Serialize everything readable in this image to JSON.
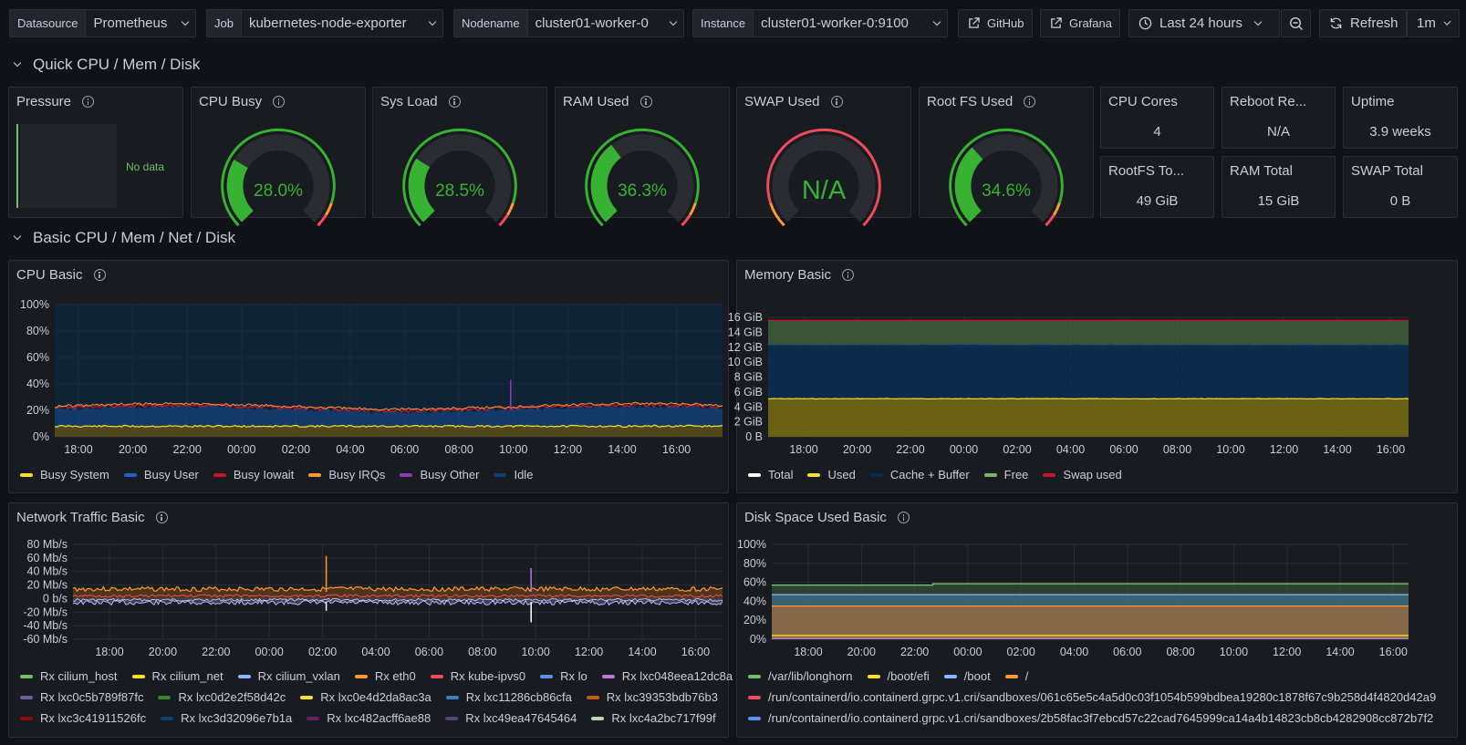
{
  "variables": [
    {
      "label": "Datasource",
      "value": "Prometheus"
    },
    {
      "label": "Job",
      "value": "kubernetes-node-exporter"
    },
    {
      "label": "Nodename",
      "value": "cluster01-worker-0"
    },
    {
      "label": "Instance",
      "value": "cluster01-worker-0:9100"
    }
  ],
  "links": {
    "github": "GitHub",
    "grafana": "Grafana"
  },
  "time_range": "Last 24 hours",
  "refresh_label": "Refresh",
  "refresh_interval": "1m",
  "rows": {
    "quick": "Quick CPU / Mem / Disk",
    "basic": "Basic CPU / Mem / Net / Disk"
  },
  "pressure": {
    "title": "Pressure",
    "no_data": "No data"
  },
  "gauges": [
    {
      "title": "CPU Busy",
      "value": "28.0%",
      "fraction": 0.28
    },
    {
      "title": "Sys Load",
      "value": "28.5%",
      "fraction": 0.285
    },
    {
      "title": "RAM Used",
      "value": "36.3%",
      "fraction": 0.363
    },
    {
      "title": "SWAP Used",
      "value": "N/A",
      "fraction": 0
    },
    {
      "title": "Root FS Used",
      "value": "34.6%",
      "fraction": 0.346
    }
  ],
  "stats": [
    {
      "title": "CPU Cores",
      "value": "4"
    },
    {
      "title": "Reboot Re...",
      "value": "N/A"
    },
    {
      "title": "Uptime",
      "value": "3.9 weeks"
    },
    {
      "title": "RootFS To...",
      "value": "49 GiB"
    },
    {
      "title": "RAM Total",
      "value": "15 GiB"
    },
    {
      "title": "SWAP Total",
      "value": "0 B"
    }
  ],
  "time_ticks": [
    "18:00",
    "20:00",
    "22:00",
    "00:00",
    "02:00",
    "04:00",
    "06:00",
    "08:00",
    "10:00",
    "12:00",
    "14:00",
    "16:00"
  ],
  "colors": {
    "green": "#37b233",
    "orange": "#ff9830",
    "red": "#f2495c",
    "bg_panel": "#181b1f"
  },
  "cpu": {
    "title": "CPU Basic",
    "yticks": [
      "100%",
      "80%",
      "60%",
      "40%",
      "20%",
      "0%"
    ],
    "legend": [
      {
        "name": "Busy System",
        "color": "#fade2a"
      },
      {
        "name": "Busy User",
        "color": "#1f60c4"
      },
      {
        "name": "Busy Iowait",
        "color": "#c4162a"
      },
      {
        "name": "Busy IRQs",
        "color": "#ff9830"
      },
      {
        "name": "Busy Other",
        "color": "#8f3bb8"
      },
      {
        "name": "Idle",
        "color": "#0a437c"
      }
    ]
  },
  "memory": {
    "title": "Memory Basic",
    "yticks": [
      "16 GiB",
      "14 GiB",
      "12 GiB",
      "10 GiB",
      "8 GiB",
      "6 GiB",
      "4 GiB",
      "2 GiB",
      "0 B"
    ],
    "legend": [
      {
        "name": "Total",
        "color": "#ffffff"
      },
      {
        "name": "Used",
        "color": "#fade2a"
      },
      {
        "name": "Cache + Buffer",
        "color": "#052b51"
      },
      {
        "name": "Free",
        "color": "#7eb26d"
      },
      {
        "name": "Swap used",
        "color": "#c4162a"
      }
    ]
  },
  "network": {
    "title": "Network Traffic Basic",
    "yticks": [
      "80 Mb/s",
      "60 Mb/s",
      "40 Mb/s",
      "20 Mb/s",
      "0 b/s",
      "-20 Mb/s",
      "-40 Mb/s",
      "-60 Mb/s"
    ],
    "legend_rows": [
      [
        {
          "name": "Rx cilium_host",
          "color": "#73bf69"
        },
        {
          "name": "Rx cilium_net",
          "color": "#fade2a"
        },
        {
          "name": "Rx cilium_vxlan",
          "color": "#8ab8ff"
        },
        {
          "name": "Rx eth0",
          "color": "#ff9830"
        },
        {
          "name": "Rx kube-ipvs0",
          "color": "#f2495c"
        },
        {
          "name": "Rx lo",
          "color": "#5794f2"
        },
        {
          "name": "Rx lxc048eea12dc8a",
          "color": "#b877d9"
        }
      ],
      [
        {
          "name": "Rx lxc0c5b789f87fc",
          "color": "#705da0"
        },
        {
          "name": "Rx lxc0d2e2f58d42c",
          "color": "#37872d"
        },
        {
          "name": "Rx lxc0e4d2da8ac3a",
          "color": "#fade2a"
        },
        {
          "name": "Rx lxc11286cb86cfa",
          "color": "#447ebc"
        },
        {
          "name": "Rx lxc39353bdb76b3",
          "color": "#c15c17"
        }
      ],
      [
        {
          "name": "Rx lxc3c41911526fc",
          "color": "#890f02"
        },
        {
          "name": "Rx lxc3d32096e7b1a",
          "color": "#0a437c"
        },
        {
          "name": "Rx lxc482acff6ae88",
          "color": "#6d1f62"
        },
        {
          "name": "Rx lxc49ea47645464",
          "color": "#584477"
        },
        {
          "name": "Rx lxc4a2bc717f99f",
          "color": "#b7dbab"
        }
      ]
    ]
  },
  "disk": {
    "title": "Disk Space Used Basic",
    "yticks": [
      "100%",
      "80%",
      "60%",
      "40%",
      "20%",
      "0%"
    ],
    "legend_rows": [
      [
        {
          "name": "/var/lib/longhorn",
          "color": "#73bf69"
        },
        {
          "name": "/boot/efi",
          "color": "#fade2a"
        },
        {
          "name": "/boot",
          "color": "#8ab8ff"
        },
        {
          "name": "/",
          "color": "#ff9830"
        }
      ],
      [
        {
          "name": "/run/containerd/io.containerd.grpc.v1.cri/sandboxes/061c65e5c4a5d0c03f1054b599bdbea19280c1878f67c9b258d4f4820d42a9",
          "color": "#f2495c"
        }
      ],
      [
        {
          "name": "/run/containerd/io.containerd.grpc.v1.cri/sandboxes/2b58fac3f7ebcd57c22cad7645999ca14a4b14823cb8cb4282908cc872b7f2",
          "color": "#5794f2"
        }
      ]
    ]
  }
}
